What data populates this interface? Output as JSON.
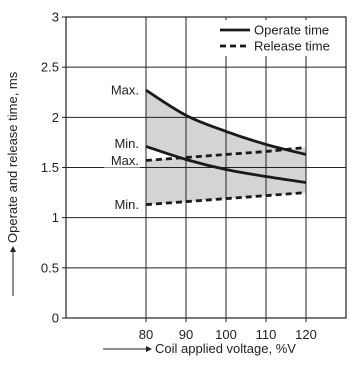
{
  "chart_data": {
    "type": "line",
    "xlabel": "Coil applied voltage, %V",
    "ylabel": "Operate and release time, ms",
    "xlim": [
      60,
      130
    ],
    "ylim": [
      0,
      3
    ],
    "xticks": [
      80,
      90,
      100,
      110,
      120
    ],
    "yticks": [
      0,
      0.5,
      1,
      1.5,
      2,
      2.5,
      3
    ],
    "xtick_labels": [
      "80",
      "90",
      "100",
      "110",
      "120"
    ],
    "ytick_labels": [
      "0",
      "0.5",
      "1",
      "1.5",
      "2",
      "2.5",
      "3"
    ],
    "grid": true,
    "legend_position": "top-right",
    "legend": [
      {
        "label": "Operate time",
        "style": "solid"
      },
      {
        "label": "Release time",
        "style": "dashed"
      }
    ],
    "shaded_region": "between max and min curves of each series",
    "series": [
      {
        "name": "Operate time",
        "bound": "Max.",
        "style": "solid",
        "x": [
          80,
          90,
          100,
          110,
          120
        ],
        "y": [
          2.27,
          2.02,
          1.86,
          1.73,
          1.63
        ]
      },
      {
        "name": "Operate time",
        "bound": "Min.",
        "style": "solid",
        "x": [
          80,
          90,
          100,
          110,
          120
        ],
        "y": [
          1.71,
          1.58,
          1.48,
          1.41,
          1.35
        ]
      },
      {
        "name": "Release time",
        "bound": "Max.",
        "style": "dashed",
        "x": [
          80,
          90,
          100,
          110,
          120
        ],
        "y": [
          1.57,
          1.6,
          1.63,
          1.66,
          1.7
        ]
      },
      {
        "name": "Release time",
        "bound": "Min.",
        "style": "dashed",
        "x": [
          80,
          90,
          100,
          110,
          120
        ],
        "y": [
          1.13,
          1.16,
          1.19,
          1.22,
          1.25
        ]
      }
    ],
    "annotations": [
      {
        "text": "Max.",
        "x": 78.5,
        "y": 2.27
      },
      {
        "text": "Min.",
        "x": 78.5,
        "y": 1.74
      },
      {
        "text": "Max.",
        "x": 78.5,
        "y": 1.57
      },
      {
        "text": "Min.",
        "x": 78.5,
        "y": 1.13
      }
    ],
    "colors": {
      "line": "#1a1a1a",
      "fill": "#d4d4d4",
      "grid": "#222222"
    }
  }
}
